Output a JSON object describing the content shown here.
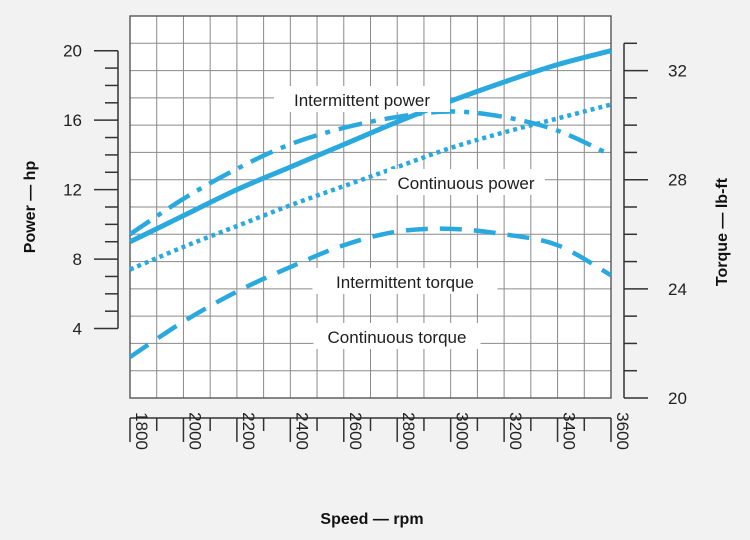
{
  "chart_data": {
    "type": "line",
    "xlabel": "Speed — rpm",
    "ylabel_left": "Power — hp",
    "ylabel_right": "Torque — lb-ft",
    "x_ticks": [
      1800,
      2000,
      2200,
      2400,
      2600,
      2800,
      3000,
      3200,
      3400,
      3600
    ],
    "y_left_ticks": [
      4,
      8,
      12,
      16,
      20
    ],
    "y_right_ticks": [
      20,
      24,
      28,
      32
    ],
    "xlim": [
      1800,
      3600
    ],
    "ylim_left": [
      0,
      22
    ],
    "ylim_right": [
      20,
      34
    ],
    "grid": true,
    "series_color": "#2aa9df",
    "series": [
      {
        "name": "Intermittent power",
        "axis": "left",
        "style": "solid",
        "x": [
          1800,
          2000,
          2200,
          2400,
          2600,
          2800,
          3000,
          3200,
          3400,
          3600
        ],
        "values": [
          9.0,
          10.5,
          12.0,
          13.3,
          14.6,
          15.9,
          17.1,
          18.2,
          19.2,
          20.0
        ]
      },
      {
        "name": "Continuous power",
        "axis": "left",
        "style": "dotted",
        "x": [
          1800,
          2000,
          2200,
          2400,
          2600,
          2800,
          3000,
          3200,
          3400,
          3600
        ],
        "values": [
          7.4,
          8.7,
          9.9,
          11.1,
          12.2,
          13.3,
          14.4,
          15.3,
          16.1,
          16.9
        ]
      },
      {
        "name": "Intermittent torque",
        "axis": "right",
        "style": "dashdot",
        "x": [
          1800,
          2000,
          2200,
          2400,
          2600,
          2800,
          3000,
          3200,
          3400,
          3600
        ],
        "values": [
          26.0,
          27.3,
          28.4,
          29.3,
          29.9,
          30.3,
          30.5,
          30.3,
          29.8,
          28.9
        ]
      },
      {
        "name": "Continuous torque",
        "axis": "right",
        "style": "dashed",
        "x": [
          1800,
          2000,
          2200,
          2400,
          2600,
          2800,
          3000,
          3200,
          3400,
          3600
        ],
        "values": [
          21.5,
          22.8,
          23.9,
          24.8,
          25.6,
          26.1,
          26.2,
          26.0,
          25.6,
          24.5
        ]
      }
    ]
  }
}
